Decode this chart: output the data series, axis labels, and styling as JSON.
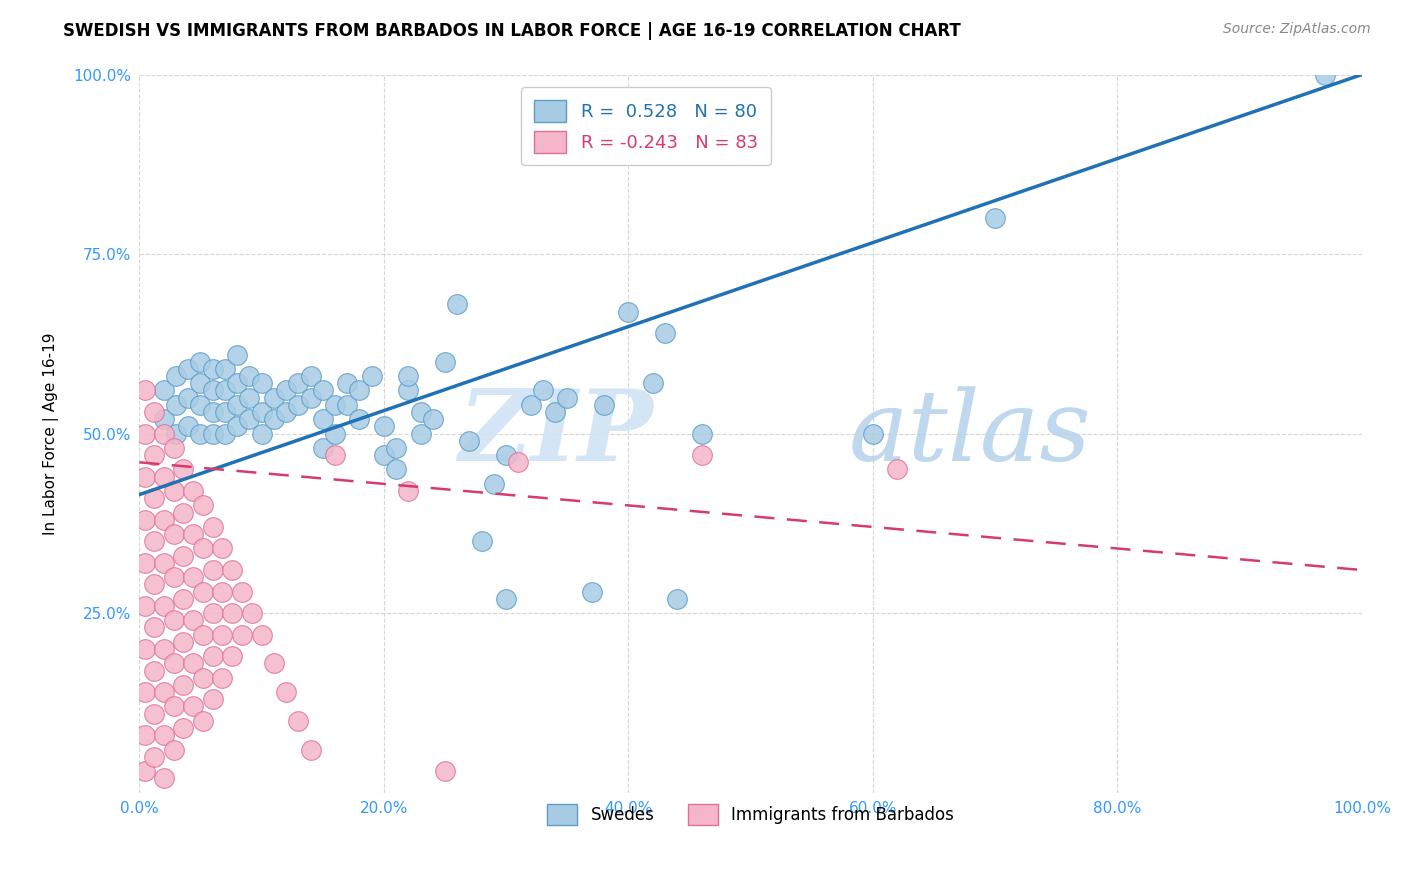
{
  "title": "SWEDISH VS IMMIGRANTS FROM BARBADOS IN LABOR FORCE | AGE 16-19 CORRELATION CHART",
  "source": "Source: ZipAtlas.com",
  "ylabel": "In Labor Force | Age 16-19",
  "xlim": [
    0.0,
    1.0
  ],
  "ylim": [
    0.0,
    1.0
  ],
  "xticks": [
    0.0,
    0.2,
    0.4,
    0.6,
    0.8,
    1.0
  ],
  "yticks": [
    0.0,
    0.25,
    0.5,
    0.75,
    1.0
  ],
  "xtick_labels": [
    "0.0%",
    "20.0%",
    "40.0%",
    "60.0%",
    "80.0%",
    "100.0%"
  ],
  "ytick_labels": [
    "",
    "25.0%",
    "50.0%",
    "75.0%",
    "100.0%"
  ],
  "watermark_zip": "ZIP",
  "watermark_atlas": "atlas",
  "blue_color": "#a8cce4",
  "blue_edge_color": "#5b9dc9",
  "blue_line_color": "#2171b5",
  "pink_color": "#f4b6c8",
  "pink_edge_color": "#e0709a",
  "pink_line_color": "#d63a6e",
  "blue_R": 0.528,
  "blue_N": 80,
  "pink_R": -0.243,
  "pink_N": 83,
  "blue_intercept": 0.415,
  "blue_slope": 0.585,
  "pink_intercept": 0.46,
  "pink_slope": -0.15,
  "blue_scatter": [
    [
      0.02,
      0.52
    ],
    [
      0.02,
      0.56
    ],
    [
      0.03,
      0.5
    ],
    [
      0.03,
      0.54
    ],
    [
      0.03,
      0.58
    ],
    [
      0.04,
      0.51
    ],
    [
      0.04,
      0.55
    ],
    [
      0.04,
      0.59
    ],
    [
      0.05,
      0.5
    ],
    [
      0.05,
      0.54
    ],
    [
      0.05,
      0.57
    ],
    [
      0.05,
      0.6
    ],
    [
      0.06,
      0.5
    ],
    [
      0.06,
      0.53
    ],
    [
      0.06,
      0.56
    ],
    [
      0.06,
      0.59
    ],
    [
      0.07,
      0.5
    ],
    [
      0.07,
      0.53
    ],
    [
      0.07,
      0.56
    ],
    [
      0.07,
      0.59
    ],
    [
      0.08,
      0.51
    ],
    [
      0.08,
      0.54
    ],
    [
      0.08,
      0.57
    ],
    [
      0.08,
      0.61
    ],
    [
      0.09,
      0.52
    ],
    [
      0.09,
      0.55
    ],
    [
      0.09,
      0.58
    ],
    [
      0.1,
      0.5
    ],
    [
      0.1,
      0.53
    ],
    [
      0.1,
      0.57
    ],
    [
      0.11,
      0.52
    ],
    [
      0.11,
      0.55
    ],
    [
      0.12,
      0.53
    ],
    [
      0.12,
      0.56
    ],
    [
      0.13,
      0.54
    ],
    [
      0.13,
      0.57
    ],
    [
      0.14,
      0.55
    ],
    [
      0.14,
      0.58
    ],
    [
      0.15,
      0.48
    ],
    [
      0.15,
      0.52
    ],
    [
      0.15,
      0.56
    ],
    [
      0.16,
      0.5
    ],
    [
      0.16,
      0.54
    ],
    [
      0.17,
      0.54
    ],
    [
      0.17,
      0.57
    ],
    [
      0.18,
      0.52
    ],
    [
      0.18,
      0.56
    ],
    [
      0.19,
      0.58
    ],
    [
      0.2,
      0.47
    ],
    [
      0.2,
      0.51
    ],
    [
      0.21,
      0.45
    ],
    [
      0.21,
      0.48
    ],
    [
      0.22,
      0.56
    ],
    [
      0.22,
      0.58
    ],
    [
      0.23,
      0.5
    ],
    [
      0.23,
      0.53
    ],
    [
      0.24,
      0.52
    ],
    [
      0.25,
      0.6
    ],
    [
      0.26,
      0.68
    ],
    [
      0.27,
      0.49
    ],
    [
      0.28,
      0.35
    ],
    [
      0.29,
      0.43
    ],
    [
      0.3,
      0.47
    ],
    [
      0.3,
      0.27
    ],
    [
      0.32,
      0.54
    ],
    [
      0.33,
      0.56
    ],
    [
      0.34,
      0.53
    ],
    [
      0.35,
      0.55
    ],
    [
      0.37,
      0.28
    ],
    [
      0.38,
      0.54
    ],
    [
      0.4,
      0.67
    ],
    [
      0.42,
      0.57
    ],
    [
      0.43,
      0.64
    ],
    [
      0.44,
      0.27
    ],
    [
      0.46,
      0.5
    ],
    [
      0.6,
      0.5
    ],
    [
      0.7,
      0.8
    ],
    [
      0.97,
      1.0
    ]
  ],
  "pink_scatter": [
    [
      0.005,
      0.56
    ],
    [
      0.005,
      0.5
    ],
    [
      0.005,
      0.44
    ],
    [
      0.005,
      0.38
    ],
    [
      0.005,
      0.32
    ],
    [
      0.005,
      0.26
    ],
    [
      0.005,
      0.2
    ],
    [
      0.005,
      0.14
    ],
    [
      0.005,
      0.08
    ],
    [
      0.005,
      0.03
    ],
    [
      0.012,
      0.53
    ],
    [
      0.012,
      0.47
    ],
    [
      0.012,
      0.41
    ],
    [
      0.012,
      0.35
    ],
    [
      0.012,
      0.29
    ],
    [
      0.012,
      0.23
    ],
    [
      0.012,
      0.17
    ],
    [
      0.012,
      0.11
    ],
    [
      0.012,
      0.05
    ],
    [
      0.02,
      0.5
    ],
    [
      0.02,
      0.44
    ],
    [
      0.02,
      0.38
    ],
    [
      0.02,
      0.32
    ],
    [
      0.02,
      0.26
    ],
    [
      0.02,
      0.2
    ],
    [
      0.02,
      0.14
    ],
    [
      0.02,
      0.08
    ],
    [
      0.02,
      0.02
    ],
    [
      0.028,
      0.48
    ],
    [
      0.028,
      0.42
    ],
    [
      0.028,
      0.36
    ],
    [
      0.028,
      0.3
    ],
    [
      0.028,
      0.24
    ],
    [
      0.028,
      0.18
    ],
    [
      0.028,
      0.12
    ],
    [
      0.028,
      0.06
    ],
    [
      0.036,
      0.45
    ],
    [
      0.036,
      0.39
    ],
    [
      0.036,
      0.33
    ],
    [
      0.036,
      0.27
    ],
    [
      0.036,
      0.21
    ],
    [
      0.036,
      0.15
    ],
    [
      0.036,
      0.09
    ],
    [
      0.044,
      0.42
    ],
    [
      0.044,
      0.36
    ],
    [
      0.044,
      0.3
    ],
    [
      0.044,
      0.24
    ],
    [
      0.044,
      0.18
    ],
    [
      0.044,
      0.12
    ],
    [
      0.052,
      0.4
    ],
    [
      0.052,
      0.34
    ],
    [
      0.052,
      0.28
    ],
    [
      0.052,
      0.22
    ],
    [
      0.052,
      0.16
    ],
    [
      0.052,
      0.1
    ],
    [
      0.06,
      0.37
    ],
    [
      0.06,
      0.31
    ],
    [
      0.06,
      0.25
    ],
    [
      0.06,
      0.19
    ],
    [
      0.06,
      0.13
    ],
    [
      0.068,
      0.34
    ],
    [
      0.068,
      0.28
    ],
    [
      0.068,
      0.22
    ],
    [
      0.068,
      0.16
    ],
    [
      0.076,
      0.31
    ],
    [
      0.076,
      0.25
    ],
    [
      0.076,
      0.19
    ],
    [
      0.084,
      0.28
    ],
    [
      0.084,
      0.22
    ],
    [
      0.092,
      0.25
    ],
    [
      0.1,
      0.22
    ],
    [
      0.11,
      0.18
    ],
    [
      0.12,
      0.14
    ],
    [
      0.13,
      0.1
    ],
    [
      0.14,
      0.06
    ],
    [
      0.16,
      0.47
    ],
    [
      0.22,
      0.42
    ],
    [
      0.25,
      0.03
    ],
    [
      0.31,
      0.46
    ],
    [
      0.46,
      0.47
    ],
    [
      0.62,
      0.45
    ]
  ]
}
